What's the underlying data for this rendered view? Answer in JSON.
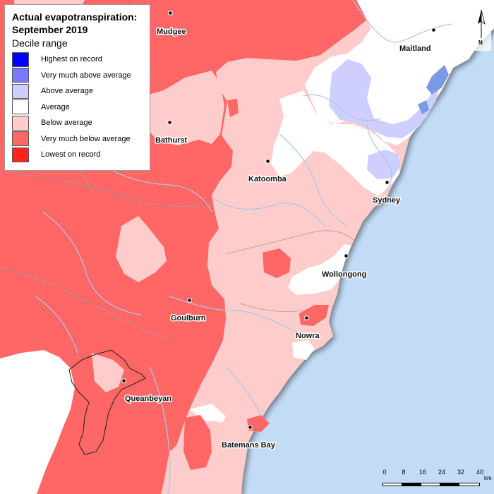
{
  "legend": {
    "title_line1": "Actual evapotranspiration:",
    "title_line2": "September 2019",
    "subtitle": "Decile range",
    "items": [
      {
        "label": "Highest on record",
        "color": "#0000ff"
      },
      {
        "label": "Very much above average",
        "color": "#7a7aff"
      },
      {
        "label": "Above average",
        "color": "#cfcfff"
      },
      {
        "label": "Average",
        "color": "#ffffff"
      },
      {
        "label": "Below average",
        "color": "#ffcccc"
      },
      {
        "label": "Very much below average",
        "color": "#ff6666"
      },
      {
        "label": "Lowest on record",
        "color": "#ff2222"
      }
    ]
  },
  "towns": [
    {
      "name": "Mudgee"
    },
    {
      "name": "Maitland"
    },
    {
      "name": "Bathurst"
    },
    {
      "name": "Katoomba"
    },
    {
      "name": "Sydney"
    },
    {
      "name": "Wollongong"
    },
    {
      "name": "Goulburn"
    },
    {
      "name": "Nowra"
    },
    {
      "name": "Queanbeyan"
    },
    {
      "name": "Batemans Bay"
    }
  ],
  "scale": {
    "ticks": [
      "0",
      "8",
      "16",
      "24",
      "32",
      "40"
    ],
    "unit": "km"
  },
  "north_label": "N",
  "colors": {
    "ocean": "#c3dcf6",
    "rivers": "#a9c6e6",
    "boundaries": "#9c9c9c"
  }
}
